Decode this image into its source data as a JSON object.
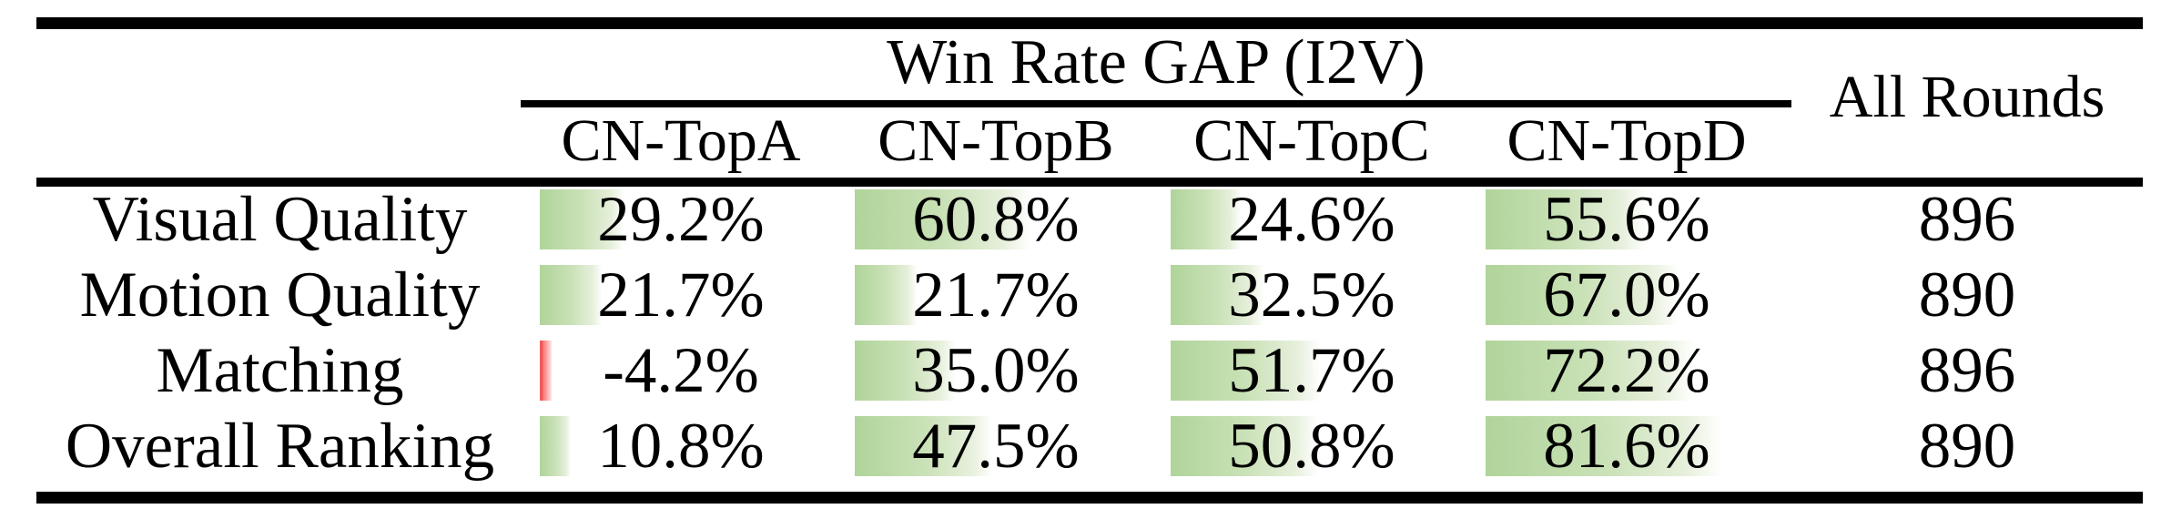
{
  "colors": {
    "bar_positive_start": "#b0d49a",
    "bar_positive_end": "#f6faf2",
    "bar_negative": "#f66e6e",
    "rule": "#000000"
  },
  "table": {
    "group_header": "Win Rate GAP (I2V)",
    "all_rounds_header": "All Rounds",
    "columns": [
      "CN-TopA",
      "CN-TopB",
      "CN-TopC",
      "CN-TopD"
    ],
    "rows": [
      {
        "label": "Visual Quality",
        "cells": [
          {
            "value": 29.2,
            "display": "29.2%"
          },
          {
            "value": 60.8,
            "display": "60.8%"
          },
          {
            "value": 24.6,
            "display": "24.6%"
          },
          {
            "value": 55.6,
            "display": "55.6%"
          }
        ],
        "all_rounds": "896"
      },
      {
        "label": "Motion Quality",
        "cells": [
          {
            "value": 21.7,
            "display": "21.7%"
          },
          {
            "value": 21.7,
            "display": "21.7%"
          },
          {
            "value": 32.5,
            "display": "32.5%"
          },
          {
            "value": 67.0,
            "display": "67.0%"
          }
        ],
        "all_rounds": "890"
      },
      {
        "label": "Matching",
        "cells": [
          {
            "value": -4.2,
            "display": "-4.2%"
          },
          {
            "value": 35.0,
            "display": "35.0%"
          },
          {
            "value": 51.7,
            "display": "51.7%"
          },
          {
            "value": 72.2,
            "display": "72.2%"
          }
        ],
        "all_rounds": "896"
      },
      {
        "label": "Overall Ranking",
        "cells": [
          {
            "value": 10.8,
            "display": "10.8%"
          },
          {
            "value": 47.5,
            "display": "47.5%"
          },
          {
            "value": 50.8,
            "display": "50.8%"
          },
          {
            "value": 81.6,
            "display": "81.6%"
          }
        ],
        "all_rounds": "890"
      }
    ]
  }
}
